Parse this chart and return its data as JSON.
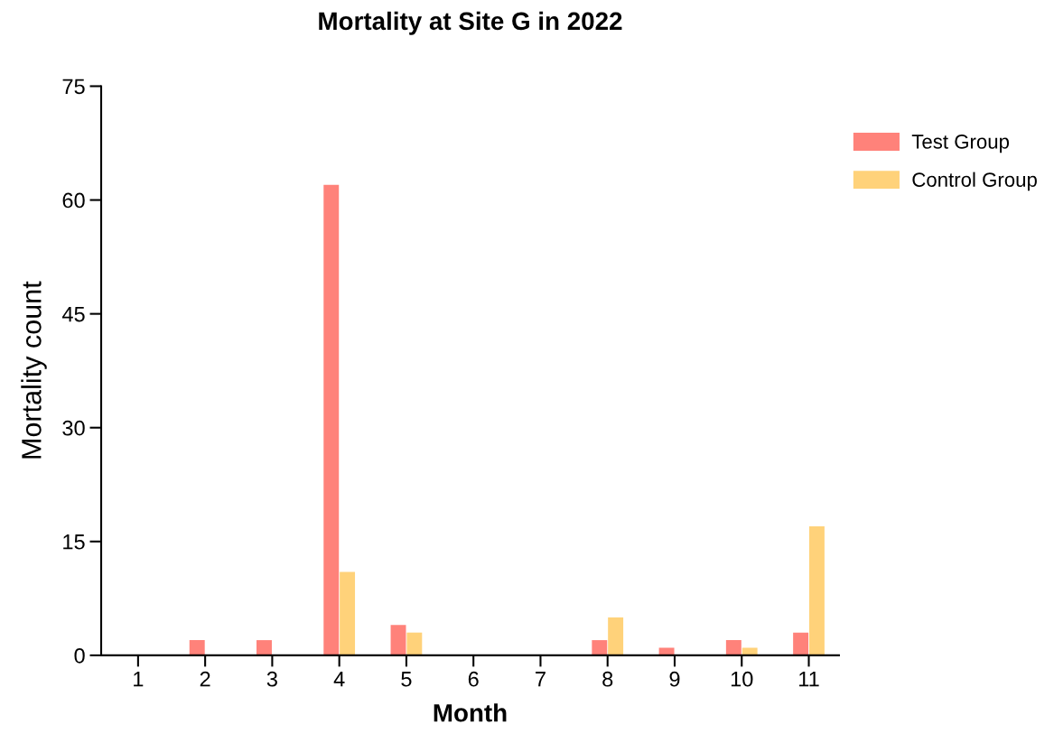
{
  "chart_data": {
    "type": "bar",
    "title": "Mortality at Site G in 2022",
    "xlabel": "Month",
    "ylabel": "Mortality count",
    "categories": [
      "1",
      "2",
      "3",
      "4",
      "5",
      "6",
      "7",
      "8",
      "9",
      "10",
      "11"
    ],
    "series": [
      {
        "name": "Test Group",
        "color": "#ff827a",
        "values": [
          0,
          2,
          2,
          62,
          4,
          0,
          0,
          2,
          1,
          2,
          3
        ]
      },
      {
        "name": "Control Group",
        "color": "#ffd27a",
        "values": [
          0,
          0,
          0,
          11,
          3,
          0,
          0,
          5,
          0,
          1,
          17
        ]
      }
    ],
    "ylim": [
      0,
      75
    ],
    "yticks": [
      0,
      15,
      30,
      45,
      60,
      75
    ],
    "grid": false,
    "legend": "top right"
  }
}
